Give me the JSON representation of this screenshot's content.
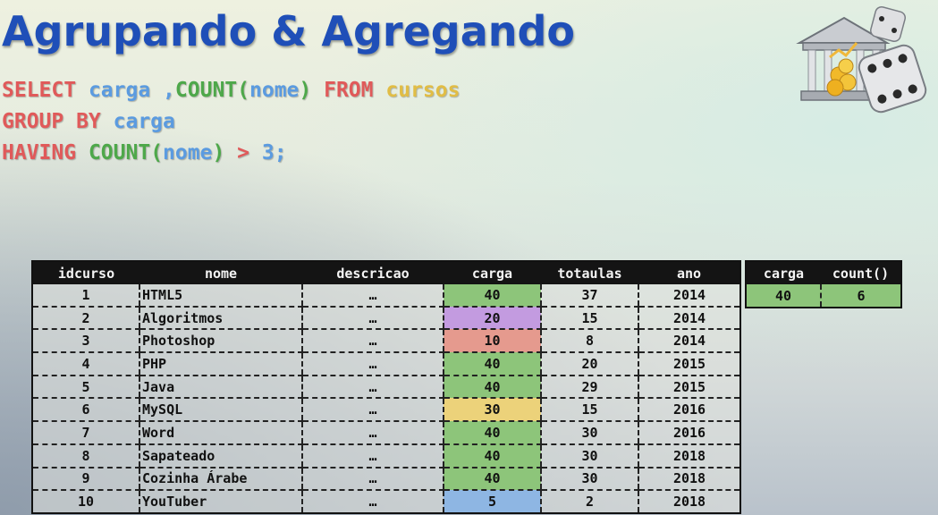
{
  "title": "Agrupando & Agregando",
  "sql": {
    "line1": {
      "select": "SELECT",
      "col": "carga",
      "comma": " ,",
      "count": "COUNT(",
      "arg": "nome",
      "close": ")",
      "from": "FROM",
      "table": "cursos"
    },
    "line2": {
      "group": "GROUP BY",
      "col": "carga"
    },
    "line3": {
      "having": "HAVING",
      "count": "COUNT(",
      "arg": "nome",
      "close": ")",
      "op": ">",
      "value": "3;"
    }
  },
  "table": {
    "headers": [
      "idcurso",
      "nome",
      "descricao",
      "carga",
      "totaulas",
      "ano"
    ],
    "rows": [
      {
        "idcurso": "1",
        "nome": "HTML5",
        "descricao": "…",
        "carga": "40",
        "totaulas": "37",
        "ano": "2014",
        "color": "#8dc57a"
      },
      {
        "idcurso": "2",
        "nome": "Algoritmos",
        "descricao": "…",
        "carga": "20",
        "totaulas": "15",
        "ano": "2014",
        "color": "#c39be0"
      },
      {
        "idcurso": "3",
        "nome": "Photoshop",
        "descricao": "…",
        "carga": "10",
        "totaulas": "8",
        "ano": "2014",
        "color": "#e59a8e"
      },
      {
        "idcurso": "4",
        "nome": "PHP",
        "descricao": "…",
        "carga": "40",
        "totaulas": "20",
        "ano": "2015",
        "color": "#8dc57a"
      },
      {
        "idcurso": "5",
        "nome": "Java",
        "descricao": "…",
        "carga": "40",
        "totaulas": "29",
        "ano": "2015",
        "color": "#8dc57a"
      },
      {
        "idcurso": "6",
        "nome": "MySQL",
        "descricao": "…",
        "carga": "30",
        "totaulas": "15",
        "ano": "2016",
        "color": "#ecd27a"
      },
      {
        "idcurso": "7",
        "nome": "Word",
        "descricao": "…",
        "carga": "40",
        "totaulas": "30",
        "ano": "2016",
        "color": "#8dc57a"
      },
      {
        "idcurso": "8",
        "nome": "Sapateado",
        "descricao": "…",
        "carga": "40",
        "totaulas": "30",
        "ano": "2018",
        "color": "#8dc57a"
      },
      {
        "idcurso": "9",
        "nome": "Cozinha Árabe",
        "descricao": "…",
        "carga": "40",
        "totaulas": "30",
        "ano": "2018",
        "color": "#8dc57a"
      },
      {
        "idcurso": "10",
        "nome": "YouTuber",
        "descricao": "…",
        "carga": "5",
        "totaulas": "2",
        "ano": "2018",
        "color": "#8eb6e3"
      }
    ]
  },
  "result": {
    "headers": [
      "carga",
      "count()"
    ],
    "row": {
      "carga": "40",
      "count": "6"
    }
  },
  "colors": {
    "title": "#1f4fb8",
    "keyword": "#e05a5a",
    "function": "#4ea84a",
    "identifier": "#5b9be0",
    "table": "#e1bd45"
  },
  "icons": {
    "logo": "bank-and-dice-icon"
  }
}
